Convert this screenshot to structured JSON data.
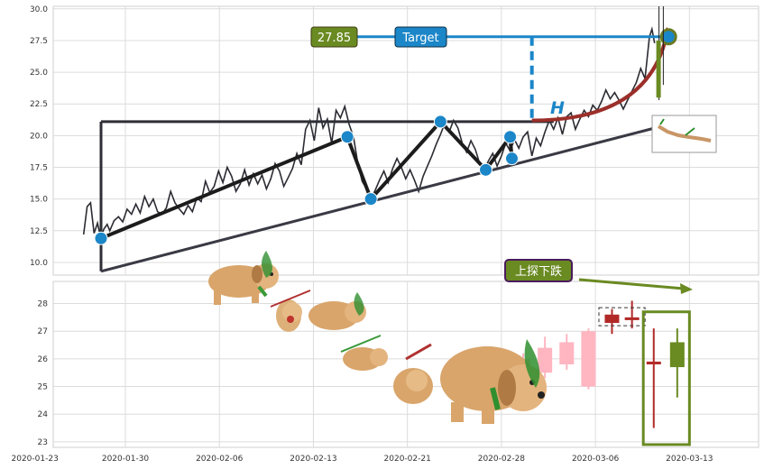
{
  "chart_data": [
    {
      "type": "line",
      "panel": "top",
      "ylim": [
        9,
        30.2
      ],
      "y_ticks": [
        "10.0",
        "12.5",
        "15.0",
        "17.5",
        "20.0",
        "22.5",
        "25.0",
        "27.5",
        "30.0"
      ],
      "grid": true,
      "series": [
        {
          "values": [
            [
              -2,
              12.2
            ],
            [
              -1.6,
              14.4
            ],
            [
              -1.2,
              14.7
            ],
            [
              -0.8,
              12.3
            ],
            [
              -0.4,
              13.1
            ],
            [
              0,
              11.8
            ],
            [
              0.3,
              12.6
            ],
            [
              0.7,
              13.0
            ],
            [
              1,
              12.5
            ],
            [
              1.5,
              13.3
            ],
            [
              2,
              13.6
            ],
            [
              2.5,
              13.2
            ],
            [
              3,
              14.2
            ],
            [
              3.5,
              13.8
            ],
            [
              4,
              14.6
            ],
            [
              4.5,
              13.9
            ],
            [
              5,
              15.2
            ],
            [
              5.5,
              14.4
            ],
            [
              6,
              15.0
            ],
            [
              6.5,
              14.0
            ],
            [
              7,
              13.8
            ],
            [
              7.5,
              14.3
            ],
            [
              8,
              15.6
            ],
            [
              8.5,
              14.7
            ],
            [
              9,
              14.2
            ],
            [
              9.5,
              13.8
            ],
            [
              10,
              14.5
            ],
            [
              10.5,
              14.0
            ],
            [
              11,
              15.1
            ],
            [
              11.5,
              14.8
            ],
            [
              12,
              16.4
            ],
            [
              12.5,
              15.5
            ],
            [
              13,
              16.0
            ],
            [
              13.5,
              17.2
            ],
            [
              14,
              16.3
            ],
            [
              14.5,
              17.5
            ],
            [
              15,
              16.8
            ],
            [
              15.5,
              15.6
            ],
            [
              16,
              16.2
            ],
            [
              16.5,
              17.3
            ],
            [
              17,
              16.1
            ],
            [
              17.5,
              17.0
            ],
            [
              18,
              16.2
            ],
            [
              18.5,
              16.9
            ],
            [
              19,
              15.8
            ],
            [
              19.5,
              16.6
            ],
            [
              20,
              17.8
            ],
            [
              20.5,
              17.2
            ],
            [
              21,
              16.0
            ],
            [
              21.5,
              16.7
            ],
            [
              22,
              17.4
            ],
            [
              22.5,
              18.6
            ],
            [
              23,
              17.7
            ],
            [
              23.5,
              20.5
            ],
            [
              24,
              21.2
            ],
            [
              24.5,
              19.6
            ],
            [
              25,
              22.2
            ],
            [
              25.5,
              20.6
            ],
            [
              26,
              21.3
            ],
            [
              26.5,
              19.4
            ],
            [
              27,
              22.0
            ],
            [
              27.5,
              21.4
            ],
            [
              28,
              22.3
            ],
            [
              28.5,
              20.9
            ],
            [
              29,
              19.9
            ],
            [
              29.5,
              17.8
            ],
            [
              30,
              16.4
            ],
            [
              30.5,
              15.8
            ],
            [
              31,
              15.0
            ],
            [
              31.5,
              15.7
            ],
            [
              32,
              16.5
            ],
            [
              32.5,
              17.2
            ],
            [
              33,
              16.3
            ],
            [
              33.5,
              17.4
            ],
            [
              34,
              18.2
            ],
            [
              34.5,
              17.5
            ],
            [
              35,
              16.6
            ],
            [
              35.5,
              17.3
            ],
            [
              36,
              16.5
            ],
            [
              36.5,
              15.6
            ],
            [
              37,
              16.8
            ],
            [
              37.5,
              17.6
            ],
            [
              38,
              18.4
            ],
            [
              38.5,
              19.3
            ],
            [
              39,
              20.1
            ],
            [
              39.5,
              21.0
            ],
            [
              40,
              20.3
            ],
            [
              40.5,
              21.2
            ],
            [
              41,
              20.6
            ],
            [
              41.5,
              19.4
            ],
            [
              42,
              18.7
            ],
            [
              42.5,
              19.6
            ],
            [
              43,
              18.9
            ],
            [
              43.5,
              17.8
            ],
            [
              44,
              17.2
            ],
            [
              44.5,
              18.0
            ],
            [
              45,
              18.6
            ],
            [
              45.5,
              17.6
            ],
            [
              46,
              18.4
            ],
            [
              46.5,
              19.4
            ],
            [
              47,
              18.8
            ],
            [
              47.5,
              19.7
            ],
            [
              48,
              19.0
            ],
            [
              48.5,
              19.9
            ],
            [
              49,
              20.3
            ],
            [
              49.5,
              18.4
            ],
            [
              50,
              19.8
            ],
            [
              50.5,
              19.2
            ],
            [
              51,
              20.3
            ],
            [
              51.5,
              21.2
            ],
            [
              52,
              20.5
            ],
            [
              52.5,
              21.4
            ],
            [
              53,
              20.1
            ],
            [
              53.5,
              21.5
            ],
            [
              54,
              21.8
            ],
            [
              54.5,
              20.5
            ],
            [
              55,
              21.3
            ],
            [
              55.5,
              22.0
            ],
            [
              56,
              21.5
            ],
            [
              56.5,
              22.4
            ],
            [
              57,
              22.0
            ],
            [
              57.5,
              22.7
            ],
            [
              58,
              23.6
            ],
            [
              58.5,
              22.9
            ],
            [
              59,
              23.4
            ],
            [
              59.5,
              22.8
            ],
            [
              60,
              22.1
            ],
            [
              60.5,
              22.8
            ],
            [
              61,
              23.5
            ],
            [
              61.5,
              24.2
            ],
            [
              62,
              25.3
            ],
            [
              62.5,
              24.5
            ],
            [
              63,
              27.8
            ],
            [
              63.3,
              28.4
            ],
            [
              63.6,
              27.3
            ]
          ]
        }
      ],
      "patterns": {
        "rising_line": [
          [
            0,
            11.9
          ],
          [
            28.3,
            19.9
          ]
        ],
        "zigzag_points": [
          [
            28.3,
            19.9
          ],
          [
            31,
            15.0
          ],
          [
            39,
            21.1
          ],
          [
            44.2,
            17.3
          ],
          [
            47,
            19.9
          ],
          [
            47.2,
            18.2
          ]
        ],
        "neckline": [
          [
            0,
            21.1
          ],
          [
            52,
            21.1
          ]
        ],
        "ascending_support": [
          [
            0,
            9.3
          ],
          [
            67,
            21.2
          ]
        ],
        "projection_arrow": [
          [
            49.5,
            21.2
          ],
          [
            65,
            28
          ]
        ],
        "target_line": [
          [
            28,
            27.8
          ],
          [
            65.2,
            27.8
          ]
        ],
        "height_marker_x": 49.5,
        "pivot_dots": [
          [
            0,
            11.9
          ],
          [
            28.3,
            19.9
          ],
          [
            31,
            15.0
          ],
          [
            39,
            21.1
          ],
          [
            44.2,
            17.3
          ],
          [
            47,
            19.9
          ],
          [
            47.2,
            18.2
          ],
          [
            65.2,
            27.8
          ]
        ]
      },
      "annotations": {
        "price_badge": "27.85",
        "target_label": "Target",
        "height_label": "H"
      },
      "colors": {
        "price_line": "#2b2b33",
        "pattern": "#1c1c1c",
        "neckline": "#2e2e36",
        "dots": "#1b86c8",
        "target": "#1b86c8",
        "projection": "#9b2f2a",
        "badge_green": "#6a8a22"
      }
    },
    {
      "type": "candlestick",
      "panel": "bottom",
      "ylim": [
        22.8,
        28.8
      ],
      "y_ticks": [
        "23",
        "24",
        "25",
        "26",
        "27",
        "28"
      ],
      "x_tick_labels": [
        "2020-01-23",
        "2020-01-30",
        "2020-02-06",
        "2020-02-13",
        "2020-02-21",
        "2020-02-28",
        "2020-03-06",
        "2020-03-13"
      ],
      "grid": true,
      "candles": [
        {
          "x": 45.5,
          "open": 24.5,
          "close": 24.8,
          "high": 25.1,
          "low": 24.3,
          "color": "#c6f7c6"
        },
        {
          "x": 48.5,
          "open": 24.9,
          "close": 26.0,
          "high": 26.2,
          "low": 24.7,
          "color": "#ffb6c1"
        },
        {
          "x": 51,
          "open": 25.5,
          "close": 26.4,
          "high": 26.8,
          "low": 25.3,
          "color": "#ffb6c1"
        },
        {
          "x": 53.5,
          "open": 25.8,
          "close": 26.6,
          "high": 26.9,
          "low": 25.6,
          "color": "#ffb6c1"
        },
        {
          "x": 56,
          "open": 25.0,
          "close": 27.0,
          "high": 27.1,
          "low": 24.9,
          "color": "#ffb6c1"
        },
        {
          "x": 58.7,
          "open": 27.6,
          "close": 27.3,
          "high": 27.8,
          "low": 26.9,
          "color": "#b22a28"
        },
        {
          "x": 61,
          "open": 27.5,
          "close": 27.4,
          "high": 28.1,
          "low": 27.1,
          "color": "#b22a28"
        },
        {
          "x": 63.5,
          "open": 25.9,
          "close": 25.8,
          "high": 27.1,
          "low": 23.5,
          "color": "#b22a28"
        },
        {
          "x": 66.2,
          "open": 25.7,
          "close": 26.6,
          "high": 27.1,
          "low": 24.6,
          "color": "#6a8a22"
        }
      ],
      "annotations": {
        "pattern_label": "上探下跌"
      },
      "colors": {
        "highlight_box": "#6a8a22",
        "label_fill": "#6a8a22",
        "label_border": "#4a1c5c"
      }
    }
  ]
}
